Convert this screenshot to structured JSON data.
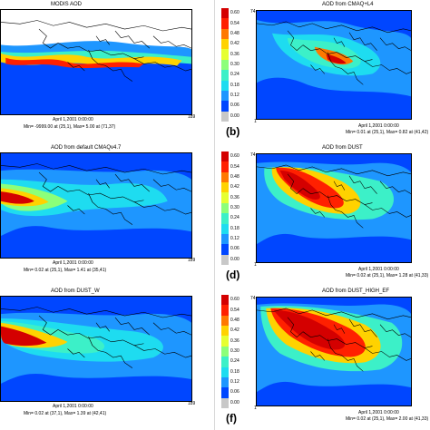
{
  "colorbar": {
    "ticks": [
      "0.60",
      "0.54",
      "0.48",
      "0.42",
      "0.36",
      "0.30",
      "0.24",
      "0.18",
      "0.12",
      "0.06",
      "0.00"
    ],
    "colors": [
      "#d40000",
      "#ff2000",
      "#ff7800",
      "#ffd200",
      "#e6ff32",
      "#8cff7a",
      "#3cf0c8",
      "#1edcf0",
      "#1e96ff",
      "#0046ff",
      "#c8c8c8"
    ]
  },
  "panels": [
    {
      "title": "MODIS AOD",
      "label": "",
      "stat1": "April 1,2001 0:00:00",
      "stat2": "Min= -9999.00 at (25,1), Max= 5.00 at (71,37)",
      "x_left": "",
      "x_right": "189",
      "y_top": "",
      "hasColorbar": false,
      "variant": "modis"
    },
    {
      "title": "AOD from CMAQ+L4",
      "label": "(b)",
      "stat1": "April 1,2001 0:00:00",
      "stat2": "Min= 0.01 at (25,1), Max= 0.82 at (41,42)",
      "x_left": "1",
      "x_right": "",
      "y_top": "74",
      "hasColorbar": true,
      "variant": "cmaq"
    },
    {
      "title": "AOD from default CMAQv4.7",
      "label": "",
      "stat1": "April 1,2001 0:00:00",
      "stat2": "Min= 0.02 at (25,1), Max= 1.41 at (35,41)",
      "x_left": "",
      "x_right": "189",
      "y_top": "",
      "hasColorbar": false,
      "variant": "def"
    },
    {
      "title": "AOD from DUST",
      "label": "(d)",
      "stat1": "April 1,2001 0:00:00",
      "stat2": "Min= 0.02 at (25,1), Max= 1.28 at (41,33)",
      "x_left": "1",
      "x_right": "",
      "y_top": "74",
      "hasColorbar": true,
      "variant": "dust"
    },
    {
      "title": "AOD from DUST_W",
      "label": "",
      "stat1": "April 1,2001 0:00:00",
      "stat2": "Min= 0.02 at (37,1), Max= 1.39 at (42,41)",
      "x_left": "",
      "x_right": "189",
      "y_top": "",
      "hasColorbar": false,
      "variant": "dustw"
    },
    {
      "title": "AOD from DUST_HIGH_EF",
      "label": "(f)",
      "stat1": "April 1,2001 0:00:00",
      "stat2": "Min= 0.02 at (25,1), Max= 2.00 at (41,33)",
      "x_left": "1",
      "x_right": "",
      "y_top": "74",
      "hasColorbar": true,
      "variant": "high"
    }
  ]
}
